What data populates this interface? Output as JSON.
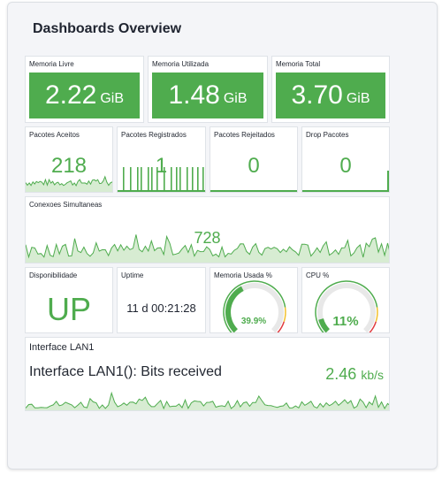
{
  "header": {
    "title": "Dashboards Overview"
  },
  "panels": {
    "mem_livre": {
      "label": "Memoria Livre",
      "value": "2.22",
      "unit": "GiB"
    },
    "mem_util": {
      "label": "Memoria Utilizada",
      "value": "1.48",
      "unit": "GiB"
    },
    "mem_total": {
      "label": "Memoria Total",
      "value": "3.70",
      "unit": "GiB"
    },
    "pac_aceitos": {
      "label": "Pacotes Aceitos",
      "value": "218"
    },
    "pac_registrados": {
      "label": "Pacotes Registrados",
      "value": "1"
    },
    "pac_rejeitados": {
      "label": "Pacotes Rejeitados",
      "value": "0"
    },
    "drop": {
      "label": "Drop Pacotes",
      "value": "0"
    },
    "conexoes": {
      "label": "Conexoes Simultaneas",
      "value": "728"
    },
    "disponibilidade": {
      "label": "Disponibilidade",
      "value": "UP"
    },
    "uptime": {
      "label": "Uptime",
      "value": "11 d 00:21:28"
    },
    "mem_usada": {
      "label": "Memoria Usada %",
      "value": "39.9%",
      "percent": 39.9
    },
    "cpu": {
      "label": "CPU %",
      "value": "11%",
      "percent": 11
    },
    "lan": {
      "title": "Interface LAN1",
      "series": "Interface LAN1(): Bits received",
      "value": "2.46",
      "unit": "kb/s"
    }
  },
  "colors": {
    "accent": "#4fac4e",
    "spark_fill": "#d7ecd2",
    "gauge_track": "#e8e8e8",
    "gauge_warn": "#f2c12e",
    "gauge_crit": "#e0393e"
  }
}
